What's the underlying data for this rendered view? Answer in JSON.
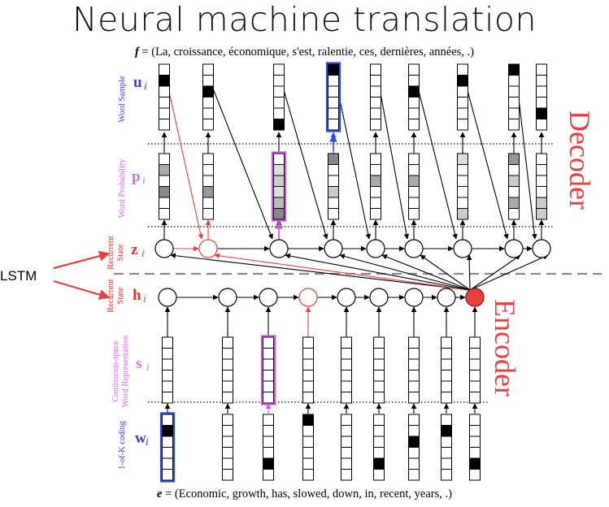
{
  "title": "Neural machine translation",
  "f_sequence": {
    "var": "f",
    "text": " = (La, croissance, économique, s'est, ralentie, ces, dernières, années, .)"
  },
  "e_sequence": {
    "var": "e",
    "text": " = (Economic, growth, has, slowed, down, in, recent, years, .)"
  },
  "lstm_label": "LSTM",
  "decoder_label": "Decoder",
  "encoder_label": "Encoder",
  "row_labels": {
    "word_sample": {
      "text": "Word Sample",
      "sym": "u",
      "sub": "i",
      "color": "#3344dd"
    },
    "word_probability": {
      "text": "Word Probability",
      "sym": "p",
      "sub": "i",
      "color": "#d86fd8"
    },
    "decoder_state": {
      "text": "Recurrent State",
      "sym": "z",
      "sub": "i",
      "color": "#d23a36"
    },
    "encoder_state": {
      "text": "Recurrent State",
      "sym": "h",
      "sub": "i",
      "color": "#d23a36"
    },
    "word_repr": {
      "text": "Continuous-space Word Representation",
      "sym": "s",
      "sub": "i",
      "color": "#d86fd8"
    },
    "one_of_k": {
      "text": "1-of-K coding",
      "sym": "w",
      "sub": "i",
      "color": "#3344dd"
    }
  },
  "colors": {
    "highlight_blue": "#2b4fd8",
    "highlight_pink": "#cc55e0",
    "accent_red": "#e8403f",
    "black": "#000000"
  }
}
